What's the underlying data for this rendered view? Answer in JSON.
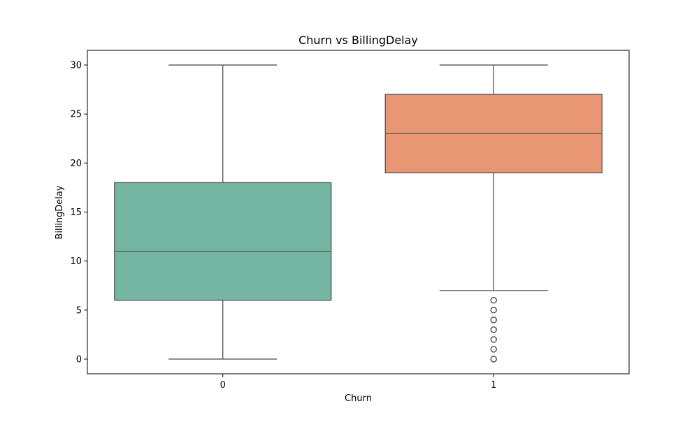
{
  "chart_data": {
    "type": "box",
    "title": "Churn vs BillingDelay",
    "xlabel": "Churn",
    "ylabel": "BillingDelay",
    "categories": [
      "0",
      "1"
    ],
    "ylim": [
      -1.5,
      31.5
    ],
    "yticks": [
      0,
      5,
      10,
      15,
      20,
      25,
      30
    ],
    "grid": false,
    "boxes": [
      {
        "category": "0",
        "whisker_low": 0,
        "q1": 6,
        "median": 11,
        "q3": 18,
        "whisker_high": 30,
        "outliers": [],
        "color": "#74b6a1"
      },
      {
        "category": "1",
        "whisker_low": 7,
        "q1": 19,
        "median": 23,
        "q3": 27,
        "whisker_high": 30,
        "outliers": [
          0,
          1,
          2,
          3,
          4,
          5,
          6
        ],
        "color": "#e99675"
      }
    ]
  }
}
